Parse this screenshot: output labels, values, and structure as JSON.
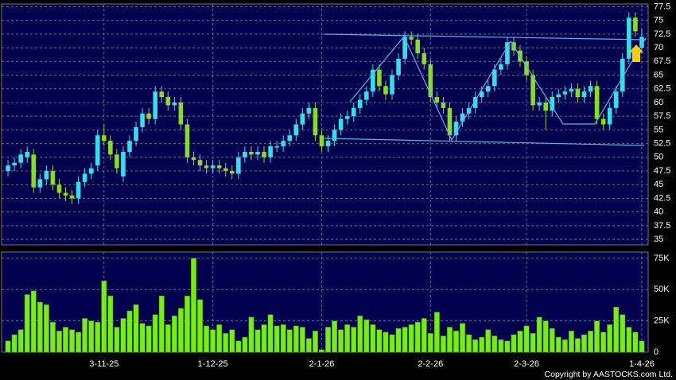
{
  "chart_data": [
    {
      "type": "candlestick",
      "up_color": "#33e0ee",
      "down_color": "#88dd22",
      "grid": true,
      "ylim": [
        34,
        78
      ],
      "yticks": [
        35,
        37.5,
        40,
        42.5,
        45,
        47.5,
        50,
        52.5,
        55,
        57.5,
        60,
        62.5,
        65,
        67.5,
        70,
        72.5,
        75,
        77.5
      ],
      "xlim": [
        -1,
        100
      ],
      "open": [
        47.5,
        48.5,
        49,
        50,
        50.5,
        44.5,
        46,
        47.5,
        45,
        43.5,
        43,
        42.5,
        45.5,
        47,
        48.5,
        54,
        53,
        50.5,
        46.5,
        51,
        53,
        55.5,
        58,
        57,
        62,
        61,
        59.5,
        60,
        56,
        50,
        49.5,
        48.5,
        48,
        48.5,
        48,
        47.5,
        47,
        50,
        51,
        50.5,
        51,
        50,
        52,
        52,
        53,
        54,
        56,
        58,
        59,
        54,
        52,
        53,
        55,
        57,
        57.5,
        59,
        60.5,
        62,
        66,
        63,
        61.5,
        65,
        68,
        72,
        71.5,
        69,
        67,
        61,
        60,
        59,
        54,
        56.5,
        58,
        59,
        61,
        62,
        63,
        66,
        67,
        71,
        69.5,
        67.5,
        65,
        59.5,
        60,
        58.5,
        61,
        61.5,
        62,
        62.5,
        61,
        62,
        63,
        57,
        56,
        59,
        62,
        68,
        75.5,
        70
      ],
      "high": [
        49.5,
        50,
        51.5,
        52,
        51.5,
        47,
        48.5,
        48.5,
        46,
        44.5,
        44,
        46.5,
        48,
        49,
        55,
        56,
        54,
        51.5,
        52,
        54,
        56.5,
        59,
        59,
        63,
        63,
        62,
        61,
        61,
        57,
        51,
        50.5,
        49.5,
        49.5,
        49.5,
        49,
        48.5,
        51,
        52,
        52,
        52,
        52,
        53,
        53,
        54,
        55,
        57,
        59,
        60,
        60,
        55,
        54,
        56,
        58,
        58.5,
        60,
        61.5,
        63,
        67,
        67,
        64,
        66,
        69,
        73,
        73,
        72.5,
        70,
        68,
        62,
        61,
        60,
        57.5,
        59,
        60,
        62,
        63,
        64,
        67,
        68,
        72,
        72,
        70.5,
        68.5,
        66,
        61,
        61,
        62,
        62.5,
        63,
        63.5,
        63.5,
        63,
        64,
        64,
        58,
        60,
        63,
        69,
        76.5,
        76.5,
        73.5
      ],
      "low": [
        46.5,
        47.5,
        48,
        49,
        43.5,
        43.5,
        45,
        44,
        42.5,
        42,
        41.5,
        41.5,
        44.5,
        46,
        47.5,
        52,
        49.5,
        47,
        45.5,
        50,
        52,
        54.5,
        56,
        56,
        60,
        58.5,
        58.5,
        55,
        49,
        48.5,
        47.5,
        47,
        47,
        47,
        46.5,
        46,
        46,
        49,
        49.5,
        49.5,
        49,
        49,
        51,
        51,
        52,
        53,
        55,
        57,
        53,
        51,
        51,
        52,
        54,
        56,
        56.5,
        58,
        59.5,
        61,
        62,
        60.5,
        60.5,
        64,
        67,
        70.5,
        68,
        66,
        60,
        59,
        58,
        53,
        53,
        55.5,
        57,
        58,
        60,
        61,
        62,
        65,
        66,
        68.5,
        66.5,
        64,
        58.5,
        58.5,
        55,
        57.5,
        60,
        60.5,
        61,
        60,
        60,
        61,
        56,
        55,
        55,
        58,
        61,
        67,
        72,
        69
      ],
      "close": [
        48.5,
        49,
        50.5,
        51,
        44.5,
        46,
        47.5,
        45,
        43.5,
        43,
        42.5,
        45.5,
        47,
        48,
        54,
        53,
        50.5,
        48,
        51,
        53,
        55.5,
        58,
        57,
        62,
        61,
        59.5,
        60,
        56,
        50,
        49.5,
        48.5,
        48,
        48.5,
        48,
        47.5,
        47,
        50,
        51,
        50.5,
        51,
        50,
        52,
        52,
        53,
        54,
        56,
        58,
        59,
        54,
        52,
        53,
        55,
        57,
        57.5,
        59,
        60.5,
        62,
        66,
        63,
        61.5,
        65,
        68,
        72,
        71.5,
        69,
        67,
        61,
        60,
        59,
        54,
        56.5,
        58,
        59,
        61,
        62,
        63,
        66,
        67,
        71,
        69.5,
        67.5,
        65,
        59.5,
        60,
        58.5,
        61,
        61.5,
        62,
        62.5,
        61,
        62,
        63,
        57,
        56,
        59,
        62,
        68,
        75.5,
        73,
        72
      ]
    },
    {
      "type": "bar",
      "color": "#77ee11",
      "grid": true,
      "ylim": [
        0,
        80000
      ],
      "yticks": [
        0,
        {
          "value": 25000,
          "label": "25K"
        },
        {
          "value": 50000,
          "label": "50K"
        },
        {
          "value": 75000,
          "label": "75K"
        }
      ],
      "xlim": [
        -1,
        100
      ],
      "xticks": [
        {
          "value": 15,
          "label": "3-11-25"
        },
        {
          "value": 32,
          "label": "1-12-25"
        },
        {
          "value": 49,
          "label": "2-1-26"
        },
        {
          "value": 66,
          "label": "2-2-26"
        },
        {
          "value": 81,
          "label": "2-3-26"
        },
        {
          "value": 99,
          "label": "1-4-26"
        }
      ],
      "values": [
        9000,
        14000,
        18000,
        46000,
        49000,
        40000,
        38000,
        24000,
        17000,
        20000,
        18000,
        16000,
        27000,
        25000,
        24000,
        57000,
        45000,
        20000,
        27000,
        33000,
        38000,
        23000,
        21000,
        30000,
        45000,
        22000,
        29000,
        35000,
        45000,
        75000,
        42000,
        21000,
        18000,
        22000,
        15000,
        18000,
        9000,
        12000,
        28000,
        18000,
        22000,
        30000,
        21000,
        22000,
        18000,
        21000,
        20000,
        11000,
        17000,
        2000,
        20000,
        25000,
        18000,
        22000,
        20000,
        29000,
        26000,
        22000,
        18000,
        16000,
        14000,
        19000,
        20000,
        22000,
        24000,
        27000,
        15000,
        32000,
        13000,
        20000,
        17000,
        23000,
        14000,
        10000,
        12000,
        18000,
        13000,
        10000,
        9000,
        14000,
        17000,
        21000,
        15000,
        28000,
        25000,
        19000,
        12000,
        10000,
        17000,
        11000,
        14000,
        17000,
        25000,
        16000,
        22000,
        36000,
        30000,
        20000,
        16000,
        9000
      ]
    }
  ],
  "copyright": "Copyright by AASTOCKS.com Ltd."
}
